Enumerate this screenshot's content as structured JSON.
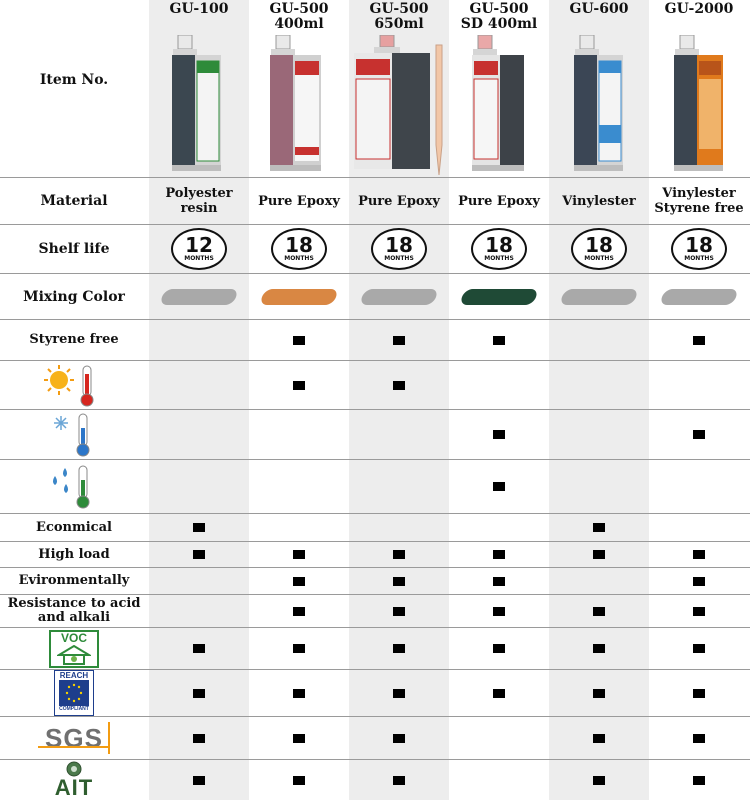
{
  "columns": [
    {
      "name_line1": "GU-100",
      "name_line2": "",
      "material_line1": "Polyester",
      "material_line2": "resin",
      "shelf_life": "12",
      "swatch_color": "#a9a9a9",
      "cartridge_color": "#3b4750",
      "label_color": "#2e8b3a"
    },
    {
      "name_line1": "GU-500",
      "name_line2": "400ml",
      "material_line1": "Pure Epoxy",
      "material_line2": "",
      "shelf_life": "18",
      "swatch_color": "#d98743",
      "cartridge_color": "#9a6878",
      "label_color": "#d8d8d8"
    },
    {
      "name_line1": "GU-500",
      "name_line2": "650ml",
      "material_line1": "Pure Epoxy",
      "material_line2": "",
      "shelf_life": "18",
      "swatch_color": "#a9a9a9",
      "cartridge_color": "#3f454b",
      "label_color": "#e2e2e2"
    },
    {
      "name_line1": "GU-500",
      "name_line2": "SD 400ml",
      "material_line1": "Pure Epoxy",
      "material_line2": "",
      "shelf_life": "18",
      "swatch_color": "#1f4a36",
      "cartridge_color": "#3d4248",
      "label_color": "#d9d9d9"
    },
    {
      "name_line1": "GU-600",
      "name_line2": "",
      "material_line1": "Vinylester",
      "material_line2": "",
      "shelf_life": "18",
      "swatch_color": "#a9a9a9",
      "cartridge_color": "#3b4655",
      "label_color": "#3a8ccf"
    },
    {
      "name_line1": "GU-2000",
      "name_line2": "",
      "material_line1": "Vinylester",
      "material_line2": "Styrene free",
      "shelf_life": "18",
      "swatch_color": "#a9a9a9",
      "cartridge_color": "#3b4550",
      "label_color": "#e07a1c"
    }
  ],
  "row_labels": {
    "item_no": "Item No.",
    "material": "Material",
    "shelf_life": "Shelf life",
    "mixing_color": "Mixing Color",
    "styrene_free": "Styrene free",
    "economical": "Econmical",
    "high_load": "High load",
    "environmentally": "Evironmentally",
    "resistance_line1": "Resistance to acid",
    "resistance_line2": "and alkali"
  },
  "shelf_unit": "MONTHS",
  "logos": {
    "voc": "VOC",
    "reach": "REACH",
    "reach_sub": "COMPLIANT",
    "sgs": "SGS",
    "ait": "AIT"
  },
  "feature_marks": {
    "styrene_free": [
      false,
      true,
      true,
      true,
      false,
      true
    ],
    "high_temp": [
      false,
      true,
      true,
      false,
      false,
      false
    ],
    "low_temp": [
      false,
      false,
      false,
      true,
      false,
      true
    ],
    "wet": [
      false,
      false,
      false,
      true,
      false,
      false
    ],
    "economical": [
      true,
      false,
      false,
      false,
      true,
      false
    ],
    "high_load": [
      true,
      true,
      true,
      true,
      true,
      true
    ],
    "environmentally": [
      false,
      true,
      true,
      true,
      false,
      true
    ],
    "resistance": [
      false,
      true,
      true,
      true,
      true,
      true
    ],
    "voc": [
      true,
      true,
      true,
      true,
      true,
      true
    ],
    "reach": [
      true,
      true,
      true,
      true,
      true,
      true
    ],
    "sgs": [
      true,
      true,
      true,
      false,
      true,
      true
    ],
    "ait": [
      true,
      true,
      true,
      false,
      true,
      true
    ]
  }
}
